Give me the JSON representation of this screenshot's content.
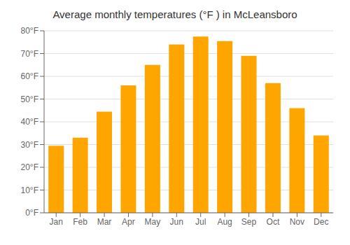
{
  "chart_data": {
    "type": "bar",
    "title": "Average monthly temperatures (°F ) in McLeansboro",
    "categories": [
      "Jan",
      "Feb",
      "Mar",
      "Apr",
      "May",
      "Jun",
      "Jul",
      "Aug",
      "Sep",
      "Oct",
      "Nov",
      "Dec"
    ],
    "values": [
      29.5,
      33.0,
      44.5,
      56.0,
      65.0,
      74.0,
      77.5,
      75.5,
      69.0,
      57.0,
      46.0,
      34.0
    ],
    "color": "#FFA500",
    "ylim": [
      0,
      80
    ],
    "yticks": [
      {
        "value": 0,
        "label": "0°F"
      },
      {
        "value": 10,
        "label": "10°F"
      },
      {
        "value": 20,
        "label": "20°F"
      },
      {
        "value": 30,
        "label": "30°F"
      },
      {
        "value": 40,
        "label": "40°F"
      },
      {
        "value": 50,
        "label": "50°F"
      },
      {
        "value": 60,
        "label": "60°F"
      },
      {
        "value": 70,
        "label": "70°F"
      },
      {
        "value": 80,
        "label": "80°F"
      }
    ],
    "grid": true
  }
}
